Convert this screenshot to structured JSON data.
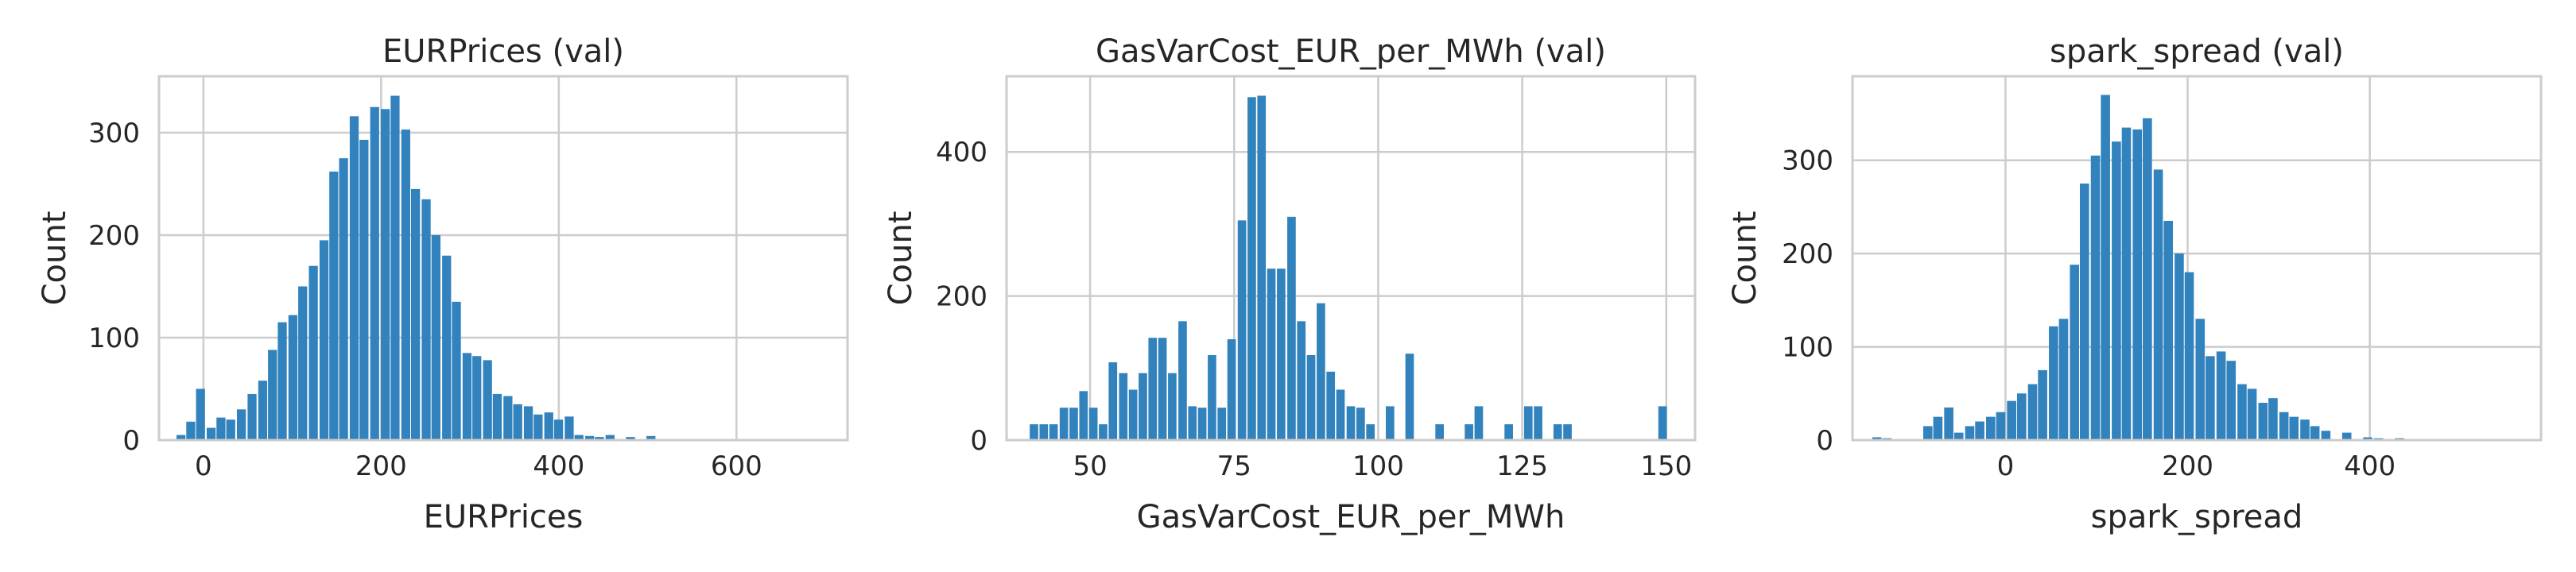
{
  "chart_data": [
    {
      "type": "bar",
      "title": "EURPrices (val)",
      "xlabel": "EURPrices",
      "ylabel": "Count",
      "xlim": [
        -50,
        725
      ],
      "ylim": [
        0,
        355
      ],
      "xticks": [
        0,
        200,
        400,
        600
      ],
      "yticks": [
        0,
        100,
        200,
        300
      ],
      "grid": true,
      "bin_width": 11.7,
      "bins": [
        {
          "x": -25,
          "count": 5
        },
        {
          "x": -14,
          "count": 18
        },
        {
          "x": -3,
          "count": 50
        },
        {
          "x": 9,
          "count": 12
        },
        {
          "x": 20,
          "count": 22
        },
        {
          "x": 31,
          "count": 20
        },
        {
          "x": 43,
          "count": 30
        },
        {
          "x": 55,
          "count": 45
        },
        {
          "x": 67,
          "count": 58
        },
        {
          "x": 78,
          "count": 88
        },
        {
          "x": 89,
          "count": 115
        },
        {
          "x": 101,
          "count": 122
        },
        {
          "x": 112,
          "count": 150
        },
        {
          "x": 124,
          "count": 170
        },
        {
          "x": 136,
          "count": 195
        },
        {
          "x": 147,
          "count": 262
        },
        {
          "x": 158,
          "count": 275
        },
        {
          "x": 170,
          "count": 316
        },
        {
          "x": 181,
          "count": 293
        },
        {
          "x": 193,
          "count": 325
        },
        {
          "x": 205,
          "count": 323
        },
        {
          "x": 216,
          "count": 336
        },
        {
          "x": 228,
          "count": 303
        },
        {
          "x": 239,
          "count": 245
        },
        {
          "x": 251,
          "count": 235
        },
        {
          "x": 262,
          "count": 200
        },
        {
          "x": 274,
          "count": 180
        },
        {
          "x": 285,
          "count": 135
        },
        {
          "x": 297,
          "count": 85
        },
        {
          "x": 308,
          "count": 82
        },
        {
          "x": 320,
          "count": 78
        },
        {
          "x": 331,
          "count": 45
        },
        {
          "x": 343,
          "count": 43
        },
        {
          "x": 354,
          "count": 35
        },
        {
          "x": 366,
          "count": 33
        },
        {
          "x": 377,
          "count": 25
        },
        {
          "x": 389,
          "count": 27
        },
        {
          "x": 400,
          "count": 20
        },
        {
          "x": 412,
          "count": 23
        },
        {
          "x": 423,
          "count": 5
        },
        {
          "x": 435,
          "count": 4
        },
        {
          "x": 446,
          "count": 3
        },
        {
          "x": 458,
          "count": 5
        },
        {
          "x": 481,
          "count": 3
        },
        {
          "x": 504,
          "count": 4
        },
        {
          "x": 550,
          "count": 1
        },
        {
          "x": 700,
          "count": 1
        }
      ]
    },
    {
      "type": "bar",
      "title": "GasVarCost_EUR_per_MWh (val)",
      "xlabel": "GasVarCost_EUR_per_MWh",
      "ylabel": "Count",
      "xlim": [
        35.5,
        155
      ],
      "ylim": [
        0,
        505
      ],
      "xticks": [
        50,
        75,
        100,
        125,
        150
      ],
      "yticks": [
        0,
        200,
        400
      ],
      "grid": true,
      "bin_width": 1.72,
      "bins": [
        {
          "x": 40.3,
          "count": 22
        },
        {
          "x": 42.0,
          "count": 22
        },
        {
          "x": 43.7,
          "count": 22
        },
        {
          "x": 45.5,
          "count": 45
        },
        {
          "x": 47.2,
          "count": 45
        },
        {
          "x": 48.9,
          "count": 68
        },
        {
          "x": 50.6,
          "count": 45
        },
        {
          "x": 52.3,
          "count": 22
        },
        {
          "x": 54.0,
          "count": 108
        },
        {
          "x": 55.8,
          "count": 93
        },
        {
          "x": 57.5,
          "count": 70
        },
        {
          "x": 59.2,
          "count": 93
        },
        {
          "x": 60.9,
          "count": 142
        },
        {
          "x": 62.6,
          "count": 142
        },
        {
          "x": 64.3,
          "count": 93
        },
        {
          "x": 66.1,
          "count": 165
        },
        {
          "x": 67.8,
          "count": 47
        },
        {
          "x": 69.5,
          "count": 45
        },
        {
          "x": 71.2,
          "count": 118
        },
        {
          "x": 72.9,
          "count": 45
        },
        {
          "x": 74.6,
          "count": 140
        },
        {
          "x": 76.4,
          "count": 305
        },
        {
          "x": 78.1,
          "count": 476
        },
        {
          "x": 79.8,
          "count": 478
        },
        {
          "x": 81.5,
          "count": 238
        },
        {
          "x": 83.2,
          "count": 238
        },
        {
          "x": 85.0,
          "count": 310
        },
        {
          "x": 86.7,
          "count": 165
        },
        {
          "x": 88.4,
          "count": 118
        },
        {
          "x": 90.1,
          "count": 190
        },
        {
          "x": 91.8,
          "count": 95
        },
        {
          "x": 93.5,
          "count": 70
        },
        {
          "x": 95.3,
          "count": 47
        },
        {
          "x": 97.0,
          "count": 45
        },
        {
          "x": 98.7,
          "count": 22
        },
        {
          "x": 102.1,
          "count": 47
        },
        {
          "x": 105.5,
          "count": 120
        },
        {
          "x": 110.7,
          "count": 22
        },
        {
          "x": 115.8,
          "count": 22
        },
        {
          "x": 117.5,
          "count": 47
        },
        {
          "x": 122.7,
          "count": 22
        },
        {
          "x": 126.1,
          "count": 47
        },
        {
          "x": 127.8,
          "count": 47
        },
        {
          "x": 131.2,
          "count": 22
        },
        {
          "x": 132.9,
          "count": 22
        },
        {
          "x": 149.4,
          "count": 47
        }
      ]
    },
    {
      "type": "bar",
      "title": "spark_spread (val)",
      "xlabel": "spark_spread",
      "ylabel": "Count",
      "xlim": [
        -168,
        588
      ],
      "ylim": [
        0,
        390
      ],
      "xticks": [
        0,
        200,
        400
      ],
      "yticks": [
        0,
        100,
        200,
        300
      ],
      "grid": true,
      "bin_width": 11.7,
      "bins": [
        {
          "x": -141,
          "count": 3
        },
        {
          "x": -130,
          "count": 2
        },
        {
          "x": -85,
          "count": 15
        },
        {
          "x": -74,
          "count": 25
        },
        {
          "x": -62,
          "count": 35
        },
        {
          "x": -51,
          "count": 8
        },
        {
          "x": -39,
          "count": 15
        },
        {
          "x": -28,
          "count": 20
        },
        {
          "x": -16,
          "count": 25
        },
        {
          "x": -5,
          "count": 30
        },
        {
          "x": 7,
          "count": 42
        },
        {
          "x": 18,
          "count": 50
        },
        {
          "x": 30,
          "count": 60
        },
        {
          "x": 41,
          "count": 75
        },
        {
          "x": 53,
          "count": 122
        },
        {
          "x": 64,
          "count": 130
        },
        {
          "x": 76,
          "count": 188
        },
        {
          "x": 87,
          "count": 275
        },
        {
          "x": 99,
          "count": 305
        },
        {
          "x": 110,
          "count": 370
        },
        {
          "x": 122,
          "count": 320
        },
        {
          "x": 133,
          "count": 335
        },
        {
          "x": 145,
          "count": 333
        },
        {
          "x": 156,
          "count": 345
        },
        {
          "x": 168,
          "count": 290
        },
        {
          "x": 179,
          "count": 235
        },
        {
          "x": 191,
          "count": 200
        },
        {
          "x": 202,
          "count": 180
        },
        {
          "x": 214,
          "count": 130
        },
        {
          "x": 225,
          "count": 90
        },
        {
          "x": 237,
          "count": 95
        },
        {
          "x": 248,
          "count": 85
        },
        {
          "x": 260,
          "count": 60
        },
        {
          "x": 271,
          "count": 55
        },
        {
          "x": 283,
          "count": 40
        },
        {
          "x": 294,
          "count": 45
        },
        {
          "x": 306,
          "count": 30
        },
        {
          "x": 317,
          "count": 25
        },
        {
          "x": 329,
          "count": 22
        },
        {
          "x": 340,
          "count": 15
        },
        {
          "x": 352,
          "count": 10
        },
        {
          "x": 375,
          "count": 8
        },
        {
          "x": 398,
          "count": 3
        },
        {
          "x": 410,
          "count": 2
        },
        {
          "x": 433,
          "count": 2
        },
        {
          "x": 456,
          "count": 1
        },
        {
          "x": 525,
          "count": 1
        }
      ]
    }
  ]
}
